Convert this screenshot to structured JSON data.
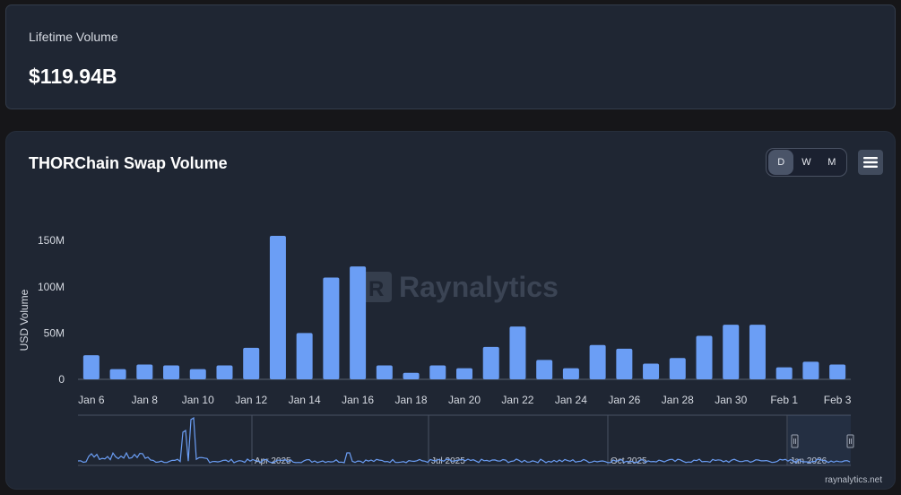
{
  "lifetime": {
    "label": "Lifetime Volume",
    "value": "$119.94B"
  },
  "chart": {
    "title": "THORChain Swap Volume",
    "toggle": {
      "day": "D",
      "week": "W",
      "month": "M",
      "active": "D"
    },
    "menu_icon": "hamburger-icon",
    "watermark": "Raynalytics",
    "credit": "raynalytics.net",
    "navigator_labels": [
      "Apr 2025",
      "Jul 2025",
      "Oct 2025",
      "Jan 2026"
    ],
    "bar_color": "#6b9ef5"
  },
  "chart_data": {
    "type": "bar",
    "title": "THORChain Swap Volume",
    "ylabel": "USD Volume",
    "xlabel": "",
    "ylim": [
      0,
      155
    ],
    "y_ticks": [
      "0",
      "50M",
      "100M",
      "150M"
    ],
    "x_tick_labels": [
      "Jan 6",
      "Jan 8",
      "Jan 10",
      "Jan 12",
      "Jan 14",
      "Jan 16",
      "Jan 18",
      "Jan 20",
      "Jan 22",
      "Jan 24",
      "Jan 26",
      "Jan 28",
      "Jan 30",
      "Feb 1",
      "Feb 3"
    ],
    "categories": [
      "Jan 6",
      "Jan 7",
      "Jan 8",
      "Jan 9",
      "Jan 10",
      "Jan 11",
      "Jan 12",
      "Jan 13",
      "Jan 14",
      "Jan 15",
      "Jan 16",
      "Jan 17",
      "Jan 18",
      "Jan 19",
      "Jan 20",
      "Jan 21",
      "Jan 22",
      "Jan 23",
      "Jan 24",
      "Jan 25",
      "Jan 26",
      "Jan 27",
      "Jan 28",
      "Jan 29",
      "Jan 30",
      "Jan 31",
      "Feb 1",
      "Feb 2",
      "Feb 3"
    ],
    "unit": "USD millions",
    "values": [
      26,
      11,
      16,
      15,
      11,
      15,
      34,
      155,
      50,
      110,
      122,
      15,
      7,
      15,
      12,
      35,
      57,
      21,
      12,
      37,
      33,
      17,
      23,
      47,
      59,
      59,
      13,
      19,
      16
    ],
    "grid": false,
    "legend": "none"
  }
}
